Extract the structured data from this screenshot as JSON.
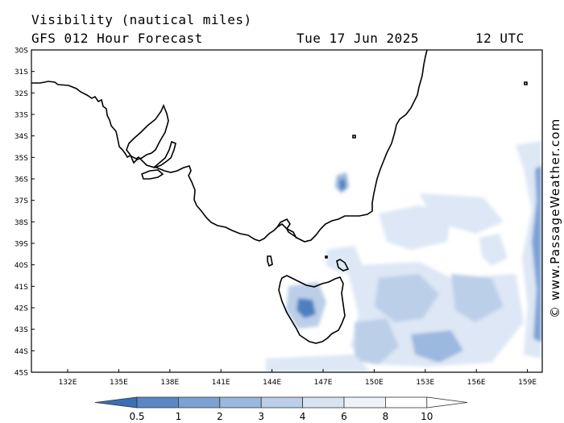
{
  "header": {
    "title": "Visibility (nautical miles)",
    "subtitle": "GFS 012 Hour Forecast",
    "date": "Tue 17 Jun 2025",
    "time": "12 UTC"
  },
  "credit": "© www.PassageWeather.com",
  "map": {
    "lat_labels": [
      "30S",
      "31S",
      "32S",
      "33S",
      "34S",
      "35S",
      "36S",
      "37S",
      "38S",
      "39S",
      "40S",
      "41S",
      "42S",
      "43S",
      "44S",
      "45S"
    ],
    "lon_labels": [
      "132E",
      "135E",
      "138E",
      "141E",
      "144E",
      "147E",
      "150E",
      "153E",
      "156E",
      "159E"
    ]
  },
  "legend": {
    "labels": [
      "0.5",
      "1",
      "2",
      "3",
      "4",
      "6",
      "8",
      "10"
    ],
    "colors": [
      "#3a6fb5",
      "#5a88c6",
      "#7ca1d3",
      "#9bb8de",
      "#bccfe8",
      "#d9e4f3",
      "#eef3fa",
      "#ffffff"
    ]
  },
  "colors": {
    "coast": "#000000",
    "strong": "#4d7fc0",
    "medium": "#a7bfe2",
    "light": "#dde7f5"
  }
}
